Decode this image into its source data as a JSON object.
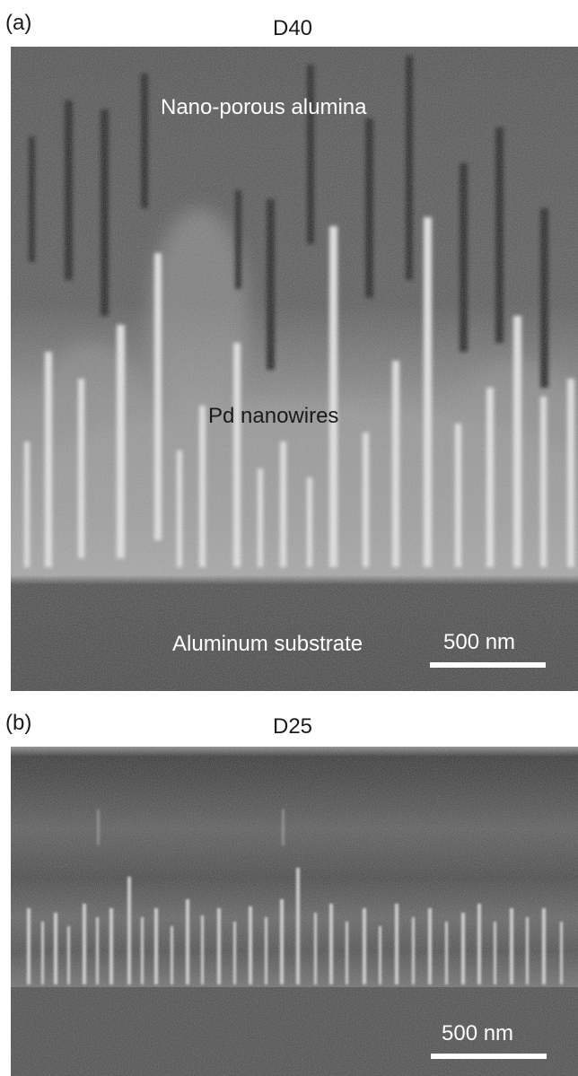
{
  "panel_a": {
    "label": "(a)",
    "title": "D40",
    "annotations": {
      "top": "Nano-porous alumina",
      "middle": "Pd nanowires",
      "bottom": "Aluminum substrate"
    },
    "scale_bar": "500 nm"
  },
  "panel_b": {
    "label": "(b)",
    "title": "D25",
    "scale_bar": "500 nm"
  },
  "colors": {
    "text_dark": "#1a1a1a",
    "text_light": "#ffffff",
    "alumina_gray": "#4a4a4a",
    "substrate_gray": "#3f3f3f",
    "nanowire_white": "#eeeeee"
  }
}
